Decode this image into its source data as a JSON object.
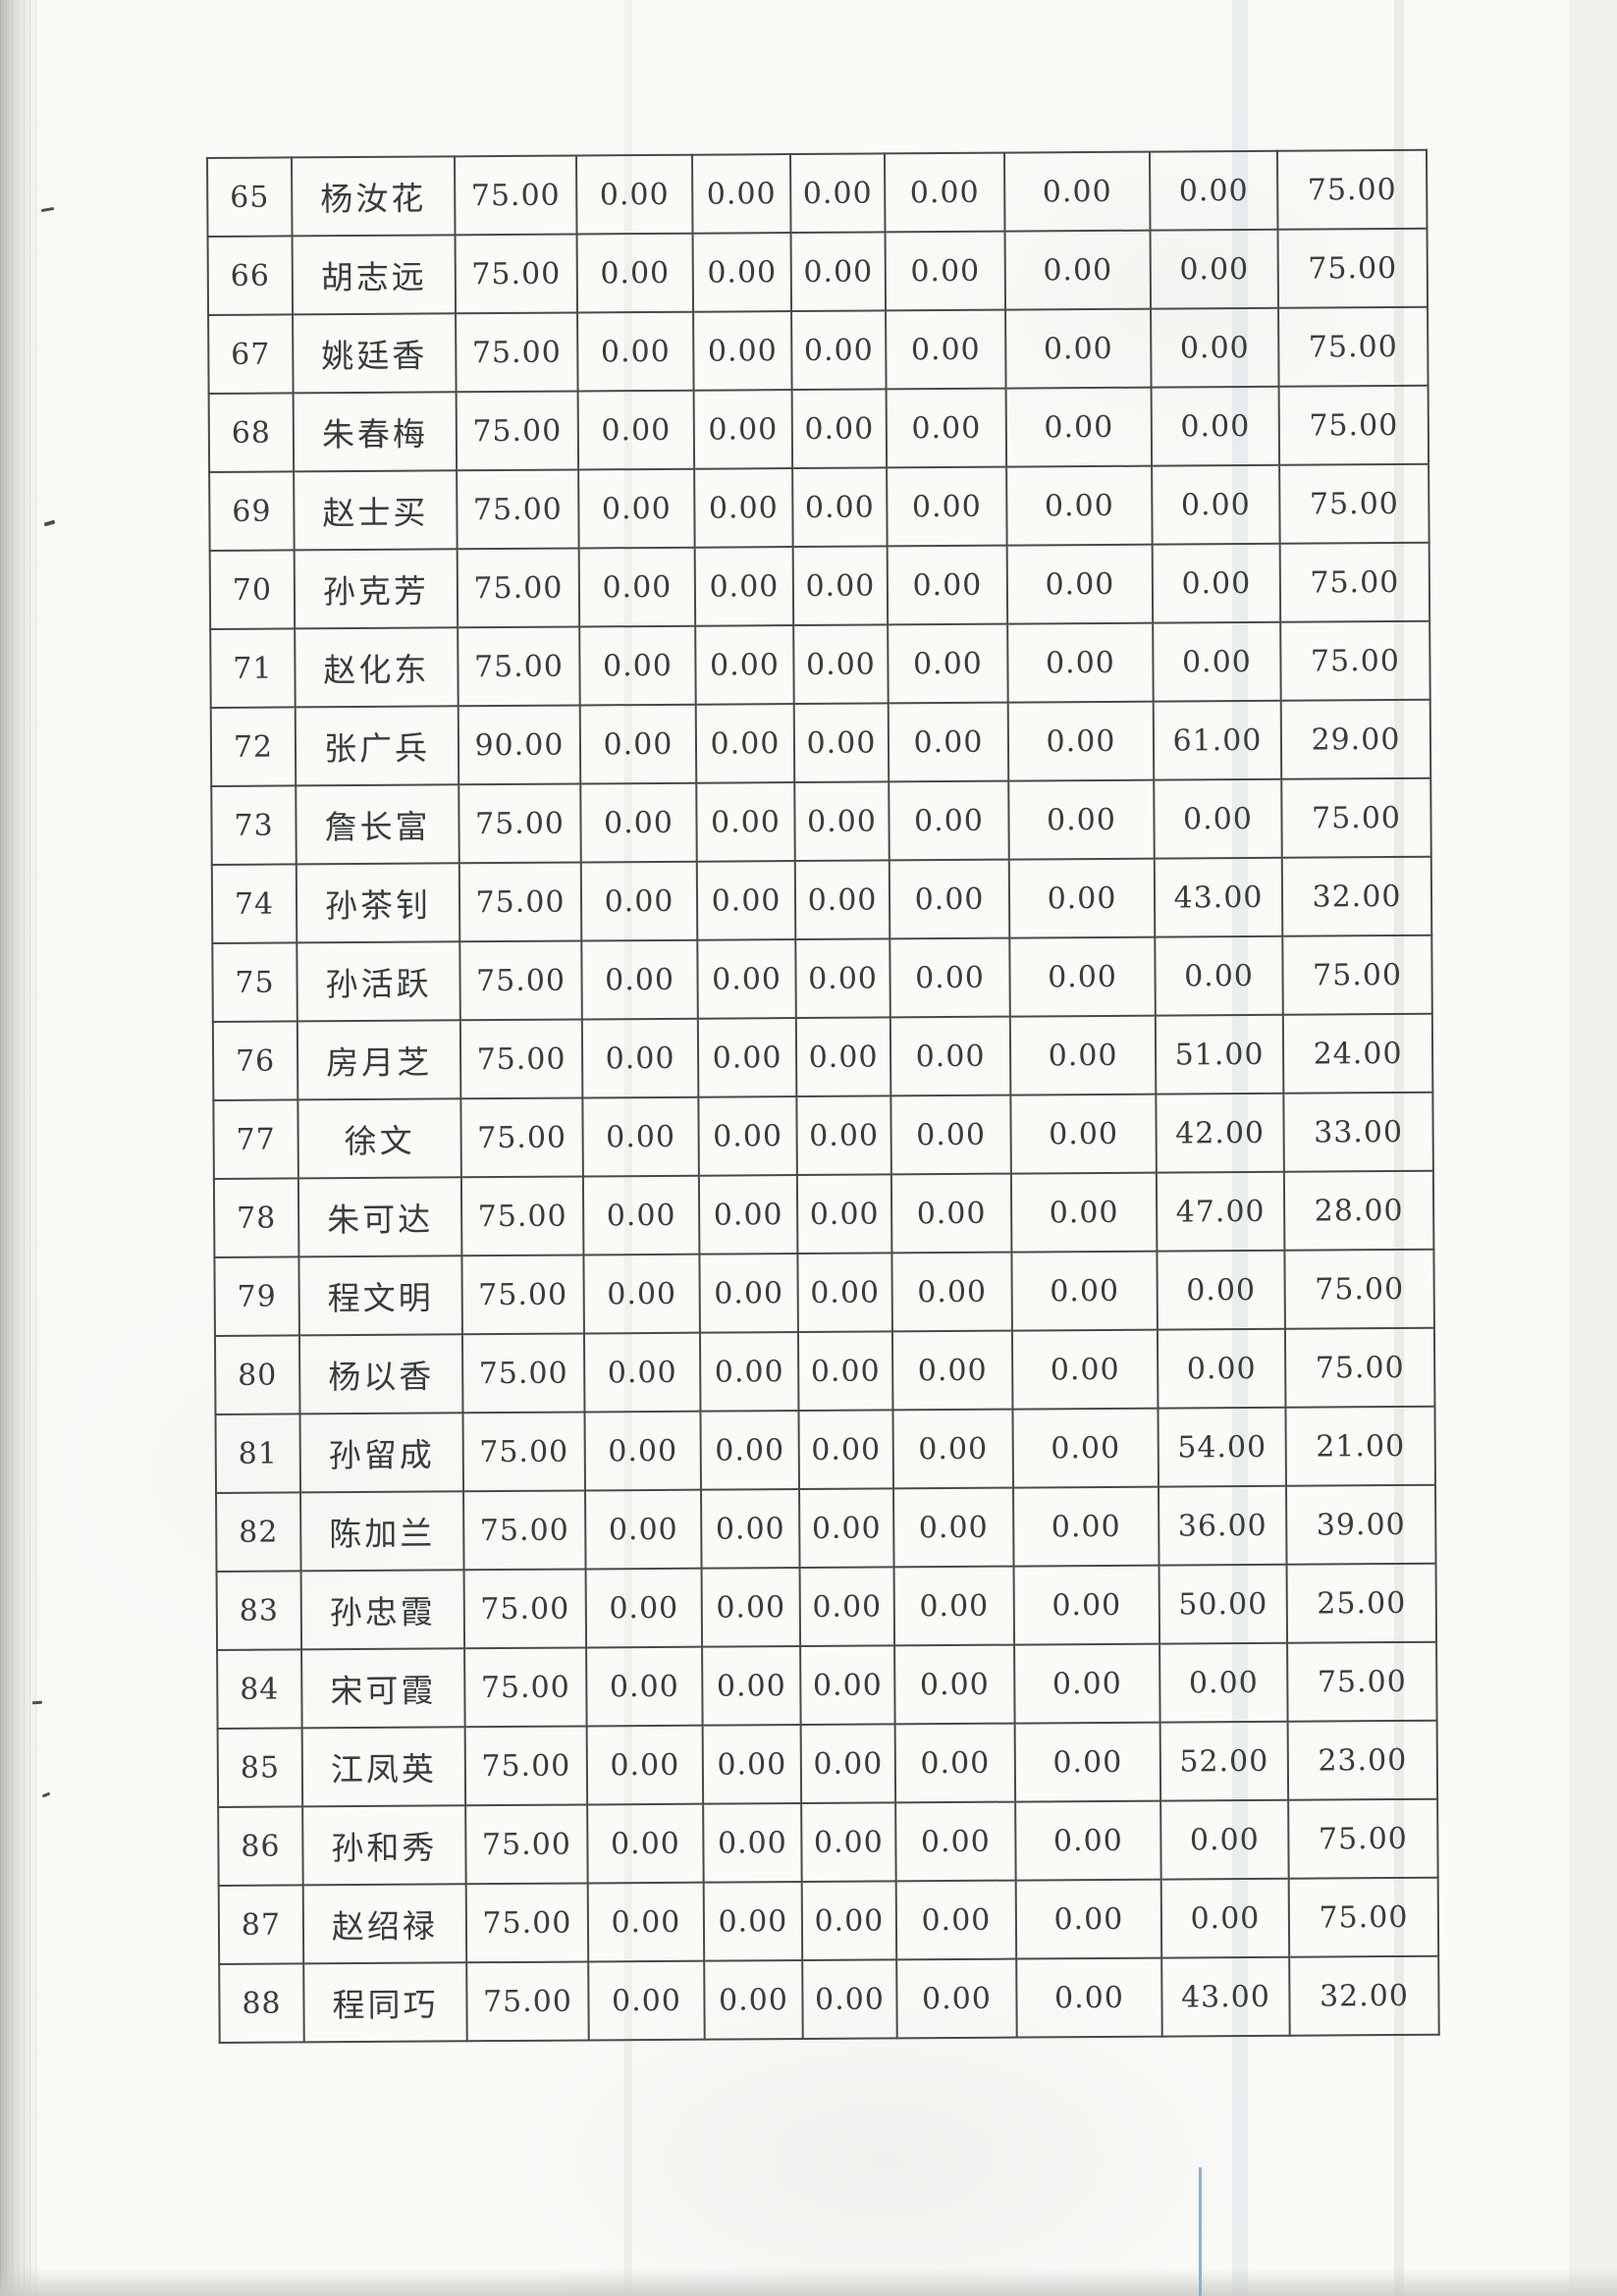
{
  "table": {
    "rows": [
      {
        "seq": "65",
        "name": "杨汝花",
        "values": [
          "75.00",
          "0.00",
          "0.00",
          "0.00",
          "0.00",
          "0.00",
          "0.00",
          "75.00"
        ]
      },
      {
        "seq": "66",
        "name": "胡志远",
        "values": [
          "75.00",
          "0.00",
          "0.00",
          "0.00",
          "0.00",
          "0.00",
          "0.00",
          "75.00"
        ]
      },
      {
        "seq": "67",
        "name": "姚廷香",
        "values": [
          "75.00",
          "0.00",
          "0.00",
          "0.00",
          "0.00",
          "0.00",
          "0.00",
          "75.00"
        ]
      },
      {
        "seq": "68",
        "name": "朱春梅",
        "values": [
          "75.00",
          "0.00",
          "0.00",
          "0.00",
          "0.00",
          "0.00",
          "0.00",
          "75.00"
        ]
      },
      {
        "seq": "69",
        "name": "赵士买",
        "values": [
          "75.00",
          "0.00",
          "0.00",
          "0.00",
          "0.00",
          "0.00",
          "0.00",
          "75.00"
        ]
      },
      {
        "seq": "70",
        "name": "孙克芳",
        "values": [
          "75.00",
          "0.00",
          "0.00",
          "0.00",
          "0.00",
          "0.00",
          "0.00",
          "75.00"
        ]
      },
      {
        "seq": "71",
        "name": "赵化东",
        "values": [
          "75.00",
          "0.00",
          "0.00",
          "0.00",
          "0.00",
          "0.00",
          "0.00",
          "75.00"
        ]
      },
      {
        "seq": "72",
        "name": "张广兵",
        "values": [
          "90.00",
          "0.00",
          "0.00",
          "0.00",
          "0.00",
          "0.00",
          "61.00",
          "29.00"
        ]
      },
      {
        "seq": "73",
        "name": "詹长富",
        "values": [
          "75.00",
          "0.00",
          "0.00",
          "0.00",
          "0.00",
          "0.00",
          "0.00",
          "75.00"
        ]
      },
      {
        "seq": "74",
        "name": "孙茶钊",
        "values": [
          "75.00",
          "0.00",
          "0.00",
          "0.00",
          "0.00",
          "0.00",
          "43.00",
          "32.00"
        ]
      },
      {
        "seq": "75",
        "name": "孙活跃",
        "values": [
          "75.00",
          "0.00",
          "0.00",
          "0.00",
          "0.00",
          "0.00",
          "0.00",
          "75.00"
        ]
      },
      {
        "seq": "76",
        "name": "房月芝",
        "values": [
          "75.00",
          "0.00",
          "0.00",
          "0.00",
          "0.00",
          "0.00",
          "51.00",
          "24.00"
        ]
      },
      {
        "seq": "77",
        "name": "徐文",
        "values": [
          "75.00",
          "0.00",
          "0.00",
          "0.00",
          "0.00",
          "0.00",
          "42.00",
          "33.00"
        ]
      },
      {
        "seq": "78",
        "name": "朱可达",
        "values": [
          "75.00",
          "0.00",
          "0.00",
          "0.00",
          "0.00",
          "0.00",
          "47.00",
          "28.00"
        ]
      },
      {
        "seq": "79",
        "name": "程文明",
        "values": [
          "75.00",
          "0.00",
          "0.00",
          "0.00",
          "0.00",
          "0.00",
          "0.00",
          "75.00"
        ]
      },
      {
        "seq": "80",
        "name": "杨以香",
        "values": [
          "75.00",
          "0.00",
          "0.00",
          "0.00",
          "0.00",
          "0.00",
          "0.00",
          "75.00"
        ]
      },
      {
        "seq": "81",
        "name": "孙留成",
        "values": [
          "75.00",
          "0.00",
          "0.00",
          "0.00",
          "0.00",
          "0.00",
          "54.00",
          "21.00"
        ]
      },
      {
        "seq": "82",
        "name": "陈加兰",
        "values": [
          "75.00",
          "0.00",
          "0.00",
          "0.00",
          "0.00",
          "0.00",
          "36.00",
          "39.00"
        ]
      },
      {
        "seq": "83",
        "name": "孙忠霞",
        "values": [
          "75.00",
          "0.00",
          "0.00",
          "0.00",
          "0.00",
          "0.00",
          "50.00",
          "25.00"
        ]
      },
      {
        "seq": "84",
        "name": "宋可霞",
        "values": [
          "75.00",
          "0.00",
          "0.00",
          "0.00",
          "0.00",
          "0.00",
          "0.00",
          "75.00"
        ]
      },
      {
        "seq": "85",
        "name": "江凤英",
        "values": [
          "75.00",
          "0.00",
          "0.00",
          "0.00",
          "0.00",
          "0.00",
          "52.00",
          "23.00"
        ]
      },
      {
        "seq": "86",
        "name": "孙和秀",
        "values": [
          "75.00",
          "0.00",
          "0.00",
          "0.00",
          "0.00",
          "0.00",
          "0.00",
          "75.00"
        ]
      },
      {
        "seq": "87",
        "name": "赵绍禄",
        "values": [
          "75.00",
          "0.00",
          "0.00",
          "0.00",
          "0.00",
          "0.00",
          "0.00",
          "75.00"
        ]
      },
      {
        "seq": "88",
        "name": "程同巧",
        "values": [
          "75.00",
          "0.00",
          "0.00",
          "0.00",
          "0.00",
          "0.00",
          "43.00",
          "32.00"
        ]
      }
    ]
  },
  "colors": {
    "table_border": "#454b4b",
    "ink": "#363d3c",
    "blue_scan_line": "#86b3d4",
    "left_edge_shadow": "#b7bab6"
  }
}
